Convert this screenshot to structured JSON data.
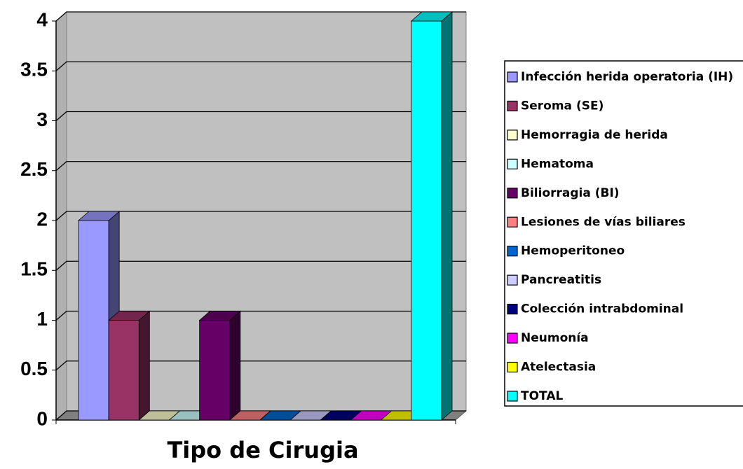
{
  "chart_data": {
    "type": "bar3d",
    "categories": [
      "Tipo de Cirugia"
    ],
    "ylim": [
      0,
      4
    ],
    "yticks": [
      0,
      0.5,
      1,
      1.5,
      2,
      2.5,
      3,
      3.5,
      4
    ],
    "grid": true,
    "legend": "right",
    "series": [
      {
        "name": "Infección herida operatoria (IH)",
        "color": "#9999ff",
        "values": [
          2
        ]
      },
      {
        "name": "Seroma (SE)",
        "color": "#993366",
        "values": [
          1
        ]
      },
      {
        "name": "Hemorragia de herida",
        "color": "#ffffcc",
        "values": [
          0
        ]
      },
      {
        "name": "Hematoma",
        "color": "#ccffff",
        "values": [
          0
        ]
      },
      {
        "name": "Biliorragia (BI)",
        "color": "#660066",
        "values": [
          1
        ]
      },
      {
        "name": "Lesiones de vías biliares",
        "color": "#ff8080",
        "values": [
          0
        ]
      },
      {
        "name": "Hemoperitoneo",
        "color": "#0066cc",
        "values": [
          0
        ]
      },
      {
        "name": "Pancreatitis",
        "color": "#ccccff",
        "values": [
          0
        ]
      },
      {
        "name": "Colección intrabdominal",
        "color": "#000080",
        "values": [
          0
        ]
      },
      {
        "name": "Neumonía",
        "color": "#ff00ff",
        "values": [
          0
        ]
      },
      {
        "name": "Atelectasia",
        "color": "#ffff00",
        "values": [
          0
        ]
      },
      {
        "name": "TOTAL",
        "color": "#00ffff",
        "values": [
          4
        ]
      }
    ]
  }
}
